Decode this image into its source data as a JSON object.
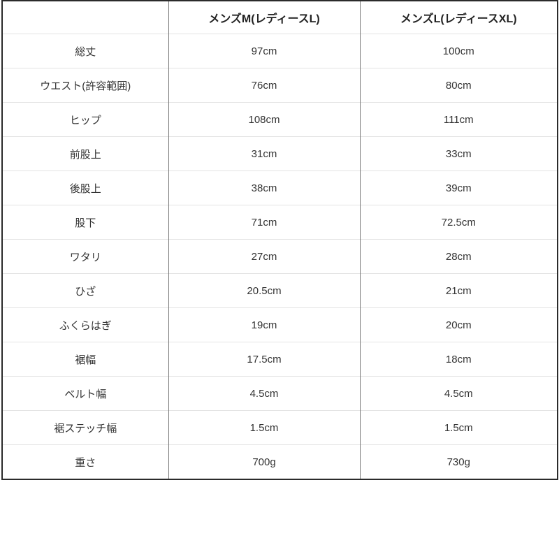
{
  "size_chart": {
    "header": {
      "label_col": "",
      "col_m": "メンズM(レディースL)",
      "col_l": "メンズL(レディースXL)"
    },
    "rows": [
      {
        "label": "総丈",
        "m": "97cm",
        "l": "100cm"
      },
      {
        "label": "ウエスト(許容範囲)",
        "m": "76cm",
        "l": "80cm"
      },
      {
        "label": "ヒップ",
        "m": "108cm",
        "l": "111cm"
      },
      {
        "label": "前股上",
        "m": "31cm",
        "l": "33cm"
      },
      {
        "label": "後股上",
        "m": "38cm",
        "l": "39cm"
      },
      {
        "label": "股下",
        "m": "71cm",
        "l": "72.5cm"
      },
      {
        "label": "ワタリ",
        "m": "27cm",
        "l": "28cm"
      },
      {
        "label": "ひざ",
        "m": "20.5cm",
        "l": "21cm"
      },
      {
        "label": "ふくらはぎ",
        "m": "19cm",
        "l": "20cm"
      },
      {
        "label": "裾幅",
        "m": "17.5cm",
        "l": "18cm"
      },
      {
        "label": "ベルト幅",
        "m": "4.5cm",
        "l": "4.5cm"
      },
      {
        "label": "裾ステッチ幅",
        "m": "1.5cm",
        "l": "1.5cm"
      },
      {
        "label": "重さ",
        "m": "700g",
        "l": "730g"
      }
    ],
    "colors": {
      "outer_border": "#2b2b2b",
      "column_divider": "#777777",
      "row_divider": "#e3e3e3",
      "header_text": "#222222",
      "body_text": "#333333",
      "background": "#ffffff"
    }
  }
}
